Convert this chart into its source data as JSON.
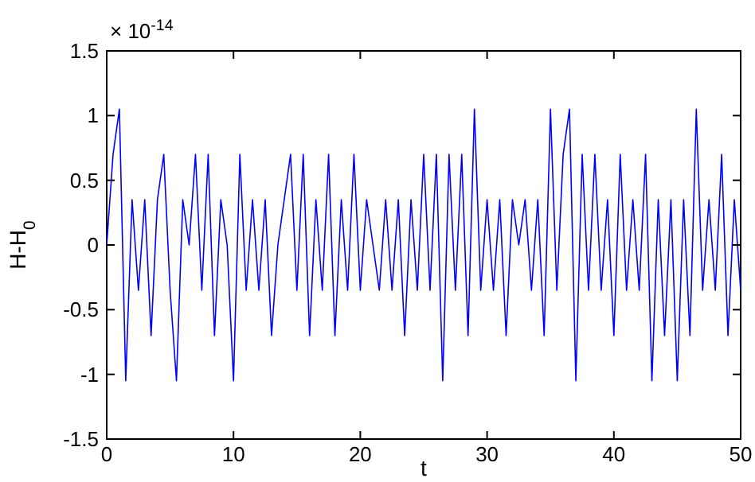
{
  "chart_data": {
    "type": "line",
    "xlabel": "t",
    "ylabel": "H-H$_{0}$",
    "annotations": [
      "× 10$^{-14}$"
    ],
    "xlim": [
      0,
      50
    ],
    "xticks": [
      0,
      10,
      20,
      30,
      40,
      50
    ],
    "ylim": [
      -1.5,
      1.5
    ],
    "yticks": [
      -1.5,
      -1,
      -0.5,
      0,
      0.5,
      1,
      1.5
    ],
    "grid": false,
    "marker": "none",
    "line_style": "solid",
    "x": [
      0,
      0.5,
      1,
      1.5,
      2,
      2.5,
      3,
      3.5,
      4,
      4.5,
      5,
      5.5,
      6,
      6.5,
      7,
      7.5,
      8,
      8.5,
      9,
      9.5,
      10,
      10.5,
      11,
      11.5,
      12,
      12.5,
      13,
      13.5,
      14,
      14.5,
      15,
      15.5,
      16,
      16.5,
      17,
      17.5,
      18,
      18.5,
      19,
      19.5,
      20,
      20.5,
      21,
      21.5,
      22,
      22.5,
      23,
      23.5,
      24,
      24.5,
      25,
      25.5,
      26,
      26.5,
      27,
      27.5,
      28,
      28.5,
      29,
      29.5,
      30,
      30.5,
      31,
      31.5,
      32,
      32.5,
      33,
      33.5,
      34,
      34.5,
      35,
      35.5,
      36,
      36.5,
      37,
      37.5,
      38,
      38.5,
      39,
      39.5,
      40,
      40.5,
      41,
      41.5,
      42,
      42.5,
      43,
      43.5,
      44,
      44.5,
      45,
      45.5,
      46,
      46.5,
      47,
      47.5,
      48,
      48.5,
      49,
      49.5,
      50
    ],
    "series": [
      {
        "color": "#0000ff",
        "values": [
          0,
          0.7,
          1.05,
          -1.05,
          0.35,
          -0.35,
          0.35,
          -0.7,
          0.35,
          0.7,
          -0.35,
          -1.05,
          0.35,
          0,
          0.7,
          -0.35,
          0.7,
          -0.7,
          0.35,
          0,
          -1.05,
          0.7,
          -0.35,
          0.35,
          -0.35,
          0.35,
          -0.7,
          0,
          0.35,
          0.7,
          -0.35,
          0.7,
          -0.7,
          0.35,
          -0.35,
          0.7,
          -0.7,
          0.35,
          -0.35,
          0.7,
          -0.35,
          0.35,
          0,
          -0.35,
          0.35,
          -0.35,
          0.35,
          -0.7,
          0.35,
          -0.35,
          0.7,
          -0.35,
          0.7,
          -1.05,
          0.7,
          -0.35,
          0.7,
          -0.7,
          1.05,
          -0.35,
          0.35,
          -0.35,
          0.35,
          -0.7,
          0.35,
          0,
          0.35,
          -0.35,
          0.35,
          -0.7,
          1.05,
          -0.35,
          0.7,
          1.05,
          -1.05,
          0.7,
          -0.35,
          0.7,
          -0.35,
          0.35,
          -0.7,
          0.7,
          -0.35,
          0.35,
          -0.35,
          0.7,
          -1.05,
          0.35,
          -0.7,
          0.35,
          -1.05,
          0.35,
          -0.7,
          1.05,
          -0.35,
          0.35,
          -0.35,
          0.7,
          -0.7,
          0.35,
          -0.35
        ]
      }
    ]
  }
}
